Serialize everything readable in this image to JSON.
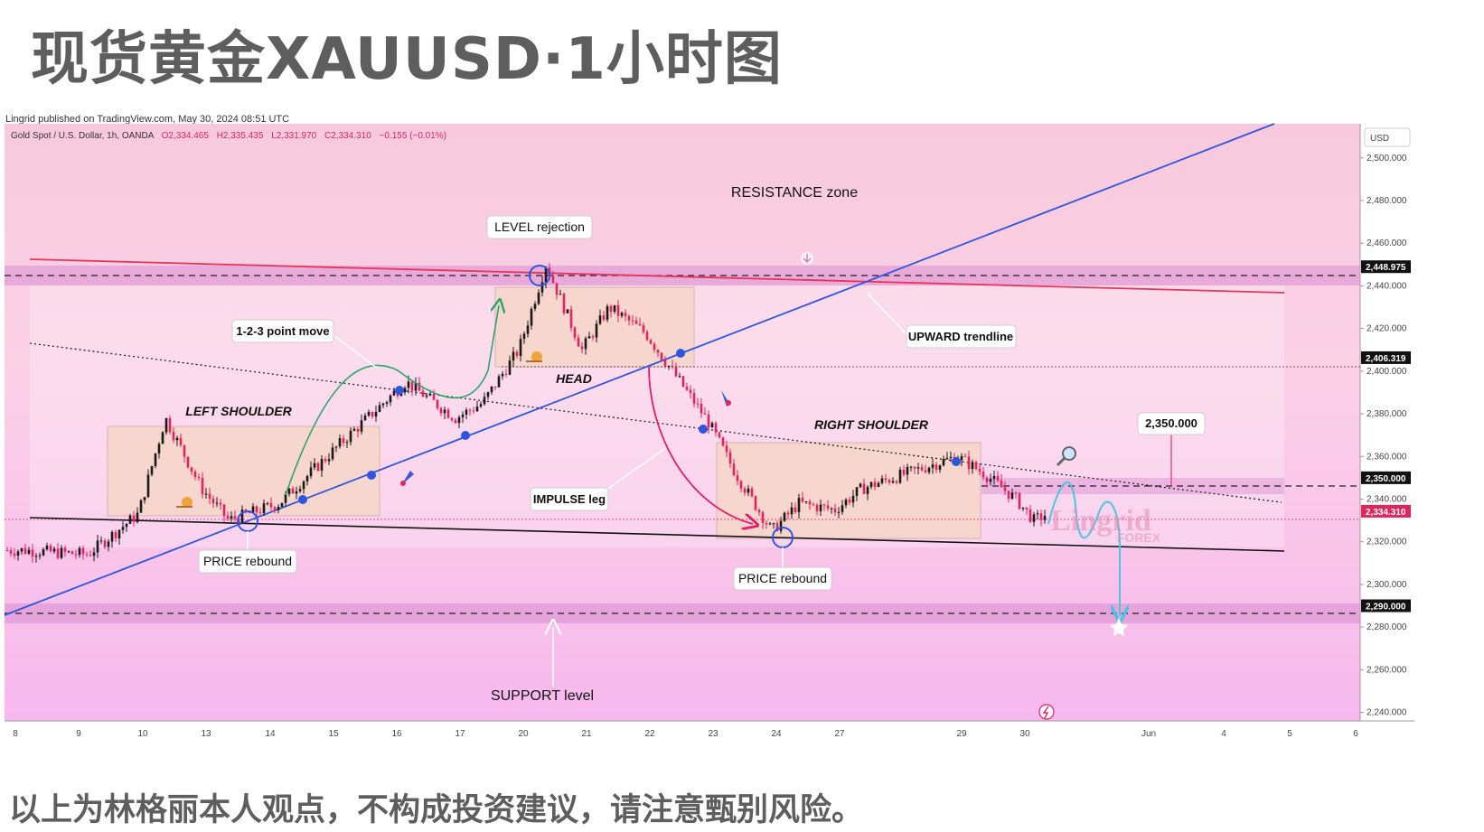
{
  "header": {
    "title": "现货黄金XAUUSD·1小时图",
    "published": "Lingrid published on TradingView.com, May 30, 2024 08:51 UTC"
  },
  "footer": {
    "note": "以上为林格丽本人观点，不构成投资建议，请注意甄别风险。"
  },
  "chart_data": {
    "type": "candlestick",
    "symbol_line": "Gold Spot / U.S. Dollar, 1h, OANDA",
    "ohlc": {
      "open": "O2,334.465",
      "high": "H2,335.435",
      "low": "L2,331.970",
      "close": "C2,334.310",
      "change": "−0.155 (−0.01%)"
    },
    "currency": "USD",
    "ylim": [
      2236,
      2516
    ],
    "y_ticks": [
      "2,500.000",
      "2,480.000",
      "2,460.000",
      "2,440.000",
      "2,420.000",
      "2,400.000",
      "2,380.000",
      "2,360.000",
      "2,340.000",
      "2,320.000",
      "2,300.000",
      "2,280.000",
      "2,260.000",
      "2,240.000"
    ],
    "x_ticks": [
      "8",
      "9",
      "10",
      "13",
      "14",
      "15",
      "16",
      "17",
      "20",
      "21",
      "22",
      "23",
      "24",
      "27",
      "29",
      "30",
      "Jun",
      "4",
      "5",
      "6"
    ],
    "price_tags": [
      {
        "label": "2,448.975",
        "value": 2448.975,
        "kind": "level"
      },
      {
        "label": "2,406.319",
        "value": 2406.319,
        "kind": "level"
      },
      {
        "label": "2,350.000",
        "value": 2350.0,
        "kind": "level"
      },
      {
        "label": "2,334.310",
        "value": 2334.31,
        "kind": "last"
      },
      {
        "label": "2,290.000",
        "value": 2290.0,
        "kind": "level"
      }
    ],
    "price_path": [
      [
        "8",
        2316
      ],
      [
        "9",
        2314
      ],
      [
        "10",
        2333
      ],
      [
        "10",
        2378
      ],
      [
        "13",
        2345
      ],
      [
        "13",
        2330
      ],
      [
        "14",
        2338
      ],
      [
        "15",
        2367
      ],
      [
        "16",
        2395
      ],
      [
        "17",
        2378
      ],
      [
        "17",
        2385
      ],
      [
        "20",
        2410
      ],
      [
        "20",
        2450
      ],
      [
        "21",
        2410
      ],
      [
        "21",
        2430
      ],
      [
        "22",
        2418
      ],
      [
        "22",
        2400
      ],
      [
        "23",
        2376
      ],
      [
        "23",
        2352
      ],
      [
        "24",
        2325
      ],
      [
        "24",
        2338
      ],
      [
        "27",
        2335
      ],
      [
        "27",
        2345
      ],
      [
        "29",
        2360
      ],
      [
        "29",
        2352
      ],
      [
        "30",
        2340
      ],
      [
        "30",
        2330
      ],
      [
        "30",
        2334.31
      ]
    ],
    "annotations": {
      "resistance": "RESISTANCE zone",
      "level_rejection": "LEVEL rejection",
      "point_move": "1-2-3 point move",
      "upward_trendline": "UPWARD trendline",
      "left_shoulder": "LEFT SHOULDER",
      "head": "HEAD",
      "right_shoulder": "RIGHT SHOULDER",
      "price_rebound_1": "PRICE rebound",
      "price_rebound_2": "PRICE rebound",
      "impulse_leg": "IMPULSE leg",
      "target_label": "2,350.000",
      "support": "SUPPORT level",
      "watermark_1": "Lingrid",
      "watermark_2": "FOREX"
    },
    "colors": {
      "up_candle": "#1a1a1a",
      "down_candle": "#e0245e",
      "trendline": "#2f55e0",
      "resistance_line": "#e8345a",
      "projection": "#4fc3e0",
      "arrow_green": "#2aa56b",
      "arrow_pink": "#e0206c",
      "tag_dark": "#111111",
      "tag_last": "#e0245e"
    },
    "icons": [
      "snail-icon",
      "rocket-icon",
      "magnifier-icon",
      "lightning-icon",
      "star-icon",
      "down-arrow-circle-icon"
    ]
  }
}
